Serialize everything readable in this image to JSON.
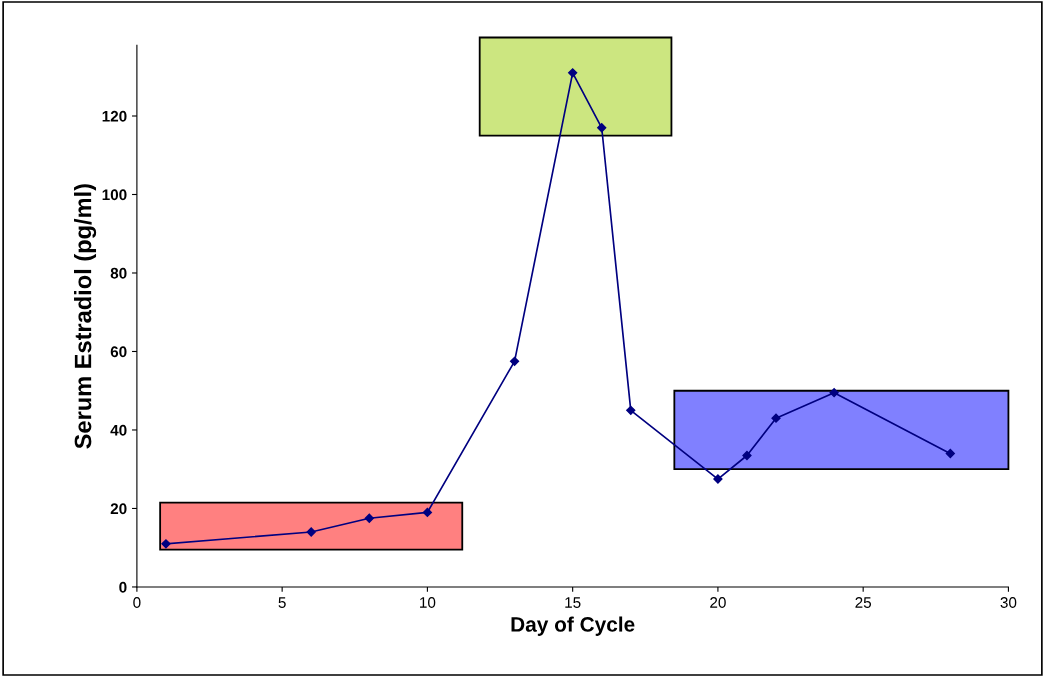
{
  "chart_data": {
    "type": "line",
    "xlabel": "Day of Cycle",
    "ylabel": "Serum Estradiol (pg/ml)",
    "x": [
      1,
      6,
      8,
      10,
      13,
      15,
      16,
      17,
      20,
      21,
      22,
      24,
      28
    ],
    "series": [
      {
        "color": "#000080",
        "values": [
          11,
          14,
          17.5,
          19,
          57.5,
          131,
          117,
          45,
          27.5,
          33.5,
          43,
          49.5,
          34
        ]
      }
    ],
    "xlim": [
      0,
      30
    ],
    "xticks": [
      0,
      5,
      10,
      15,
      20,
      25,
      30
    ],
    "ylim": [
      0,
      138
    ],
    "yticks": [
      0,
      20,
      40,
      60,
      80,
      100,
      120
    ],
    "marker": "diamond",
    "grid": false,
    "legend": false
  }
}
